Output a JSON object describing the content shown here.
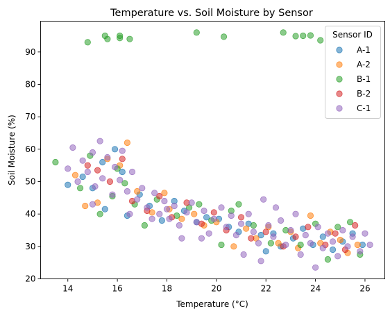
{
  "chart_data": {
    "type": "scatter",
    "title": "Temperature vs. Soil Moisture by Sensor",
    "xlabel": "Temperature (°C)",
    "ylabel": "Soil Moisture (%)",
    "xlim": [
      12.9,
      26.8
    ],
    "ylim": [
      20,
      99.5
    ],
    "xticks": [
      14,
      16,
      18,
      20,
      22,
      24,
      26
    ],
    "yticks": [
      20,
      30,
      40,
      50,
      60,
      70,
      80,
      90
    ],
    "grid": false,
    "legend_title": "Sensor ID",
    "legend_position": "top-right",
    "series": [
      {
        "name": "A-1",
        "color": "#1f77b4",
        "points": [
          [
            14.0,
            49.0
          ],
          [
            14.6,
            51.5
          ],
          [
            15.0,
            48.0
          ],
          [
            15.4,
            56.0
          ],
          [
            15.5,
            41.5
          ],
          [
            15.9,
            60.0
          ],
          [
            16.2,
            53.0
          ],
          [
            16.4,
            39.5
          ],
          [
            16.9,
            46.0
          ],
          [
            17.3,
            42.5
          ],
          [
            17.8,
            38.0
          ],
          [
            18.3,
            44.0
          ],
          [
            18.7,
            41.0
          ],
          [
            19.2,
            37.5
          ],
          [
            19.6,
            39.0
          ],
          [
            20.1,
            38.5
          ],
          [
            20.5,
            36.0
          ],
          [
            20.9,
            34.5
          ],
          [
            21.3,
            37.0
          ],
          [
            21.8,
            33.5
          ],
          [
            22.0,
            28.5
          ],
          [
            22.3,
            34.0
          ],
          [
            22.6,
            30.0
          ],
          [
            23.1,
            32.5
          ],
          [
            23.5,
            35.5
          ],
          [
            23.9,
            30.5
          ],
          [
            24.3,
            33.0
          ],
          [
            24.7,
            29.0
          ],
          [
            25.1,
            31.5
          ],
          [
            25.5,
            34.0
          ],
          [
            25.9,
            30.5
          ]
        ]
      },
      {
        "name": "A-2",
        "color": "#ff7f0e",
        "points": [
          [
            14.3,
            52.0
          ],
          [
            14.7,
            42.5
          ],
          [
            15.2,
            43.5
          ],
          [
            15.6,
            57.0
          ],
          [
            16.1,
            55.0
          ],
          [
            16.4,
            62.0
          ],
          [
            16.8,
            47.0
          ],
          [
            17.4,
            40.5
          ],
          [
            17.9,
            46.5
          ],
          [
            18.1,
            41.5
          ],
          [
            18.6,
            38.5
          ],
          [
            19.1,
            40.0
          ],
          [
            19.5,
            36.5
          ],
          [
            20.0,
            37.5
          ],
          [
            20.7,
            30.0
          ],
          [
            21.2,
            35.5
          ],
          [
            21.6,
            32.5
          ],
          [
            22.1,
            36.0
          ],
          [
            22.5,
            31.0
          ],
          [
            23.0,
            34.5
          ],
          [
            23.3,
            29.5
          ],
          [
            23.8,
            39.5
          ],
          [
            24.2,
            31.0
          ],
          [
            24.6,
            34.5
          ],
          [
            25.0,
            32.0
          ],
          [
            25.3,
            28.0
          ],
          [
            25.7,
            30.5
          ]
        ]
      },
      {
        "name": "B-1",
        "color": "#2ca02c",
        "points": [
          [
            14.8,
            93.0
          ],
          [
            15.5,
            95.0
          ],
          [
            15.6,
            94.0
          ],
          [
            16.1,
            95.0
          ],
          [
            16.1,
            94.3
          ],
          [
            16.5,
            94.0
          ],
          [
            19.2,
            96.0
          ],
          [
            20.3,
            94.7
          ],
          [
            22.7,
            96.0
          ],
          [
            23.2,
            94.9
          ],
          [
            23.5,
            95.0
          ],
          [
            23.8,
            95.1
          ],
          [
            24.2,
            93.6
          ],
          [
            13.5,
            56.0
          ],
          [
            14.5,
            48.0
          ],
          [
            14.9,
            58.0
          ],
          [
            15.3,
            40.0
          ],
          [
            15.8,
            45.5
          ],
          [
            16.0,
            54.0
          ],
          [
            16.3,
            49.5
          ],
          [
            16.7,
            43.0
          ],
          [
            17.1,
            36.5
          ],
          [
            17.6,
            44.5
          ],
          [
            18.4,
            39.5
          ],
          [
            18.9,
            42.0
          ],
          [
            19.3,
            43.0
          ],
          [
            19.8,
            38.0
          ],
          [
            20.2,
            30.5
          ],
          [
            20.6,
            41.0
          ],
          [
            20.9,
            43.0
          ],
          [
            21.5,
            36.5
          ],
          [
            22.2,
            31.0
          ],
          [
            22.8,
            35.0
          ],
          [
            23.4,
            30.5
          ],
          [
            24.0,
            37.0
          ],
          [
            24.5,
            26.0
          ],
          [
            24.9,
            36.0
          ],
          [
            25.4,
            37.5
          ],
          [
            25.8,
            27.5
          ]
        ]
      },
      {
        "name": "B-2",
        "color": "#d62728",
        "points": [
          [
            14.8,
            55.0
          ],
          [
            15.2,
            53.5
          ],
          [
            15.7,
            50.0
          ],
          [
            16.2,
            57.0
          ],
          [
            16.6,
            44.0
          ],
          [
            17.2,
            41.0
          ],
          [
            17.7,
            45.5
          ],
          [
            18.2,
            39.0
          ],
          [
            18.8,
            43.5
          ],
          [
            19.4,
            37.0
          ],
          [
            19.9,
            40.5
          ],
          [
            20.4,
            35.0
          ],
          [
            21.0,
            39.0
          ],
          [
            21.4,
            32.5
          ],
          [
            22.0,
            34.5
          ],
          [
            22.7,
            30.0
          ],
          [
            23.2,
            33.0
          ],
          [
            23.7,
            36.0
          ],
          [
            24.4,
            30.5
          ],
          [
            24.8,
            34.0
          ],
          [
            25.2,
            29.0
          ],
          [
            25.6,
            36.5
          ]
        ]
      },
      {
        "name": "C-1",
        "color": "#9467bd",
        "points": [
          [
            14.0,
            54.0
          ],
          [
            14.2,
            60.5
          ],
          [
            14.4,
            50.0
          ],
          [
            14.6,
            56.5
          ],
          [
            14.8,
            53.0
          ],
          [
            15.0,
            59.0
          ],
          [
            15.1,
            48.5
          ],
          [
            15.3,
            62.5
          ],
          [
            15.4,
            51.0
          ],
          [
            15.6,
            57.5
          ],
          [
            15.8,
            46.0
          ],
          [
            15.9,
            54.5
          ],
          [
            16.1,
            50.5
          ],
          [
            16.2,
            59.5
          ],
          [
            16.4,
            47.0
          ],
          [
            16.6,
            53.0
          ],
          [
            16.8,
            44.5
          ],
          [
            17.0,
            48.0
          ],
          [
            17.2,
            42.0
          ],
          [
            17.5,
            46.5
          ],
          [
            17.7,
            40.0
          ],
          [
            17.9,
            44.0
          ],
          [
            18.1,
            38.5
          ],
          [
            18.3,
            42.5
          ],
          [
            18.5,
            36.5
          ],
          [
            18.8,
            40.5
          ],
          [
            19.0,
            43.5
          ],
          [
            19.2,
            37.5
          ],
          [
            19.5,
            41.0
          ],
          [
            19.7,
            34.0
          ],
          [
            19.9,
            38.5
          ],
          [
            20.2,
            42.0
          ],
          [
            20.4,
            36.0
          ],
          [
            20.6,
            39.5
          ],
          [
            20.8,
            33.5
          ],
          [
            21.0,
            37.0
          ],
          [
            21.3,
            40.0
          ],
          [
            21.5,
            34.5
          ],
          [
            21.7,
            31.0
          ],
          [
            21.9,
            44.5
          ],
          [
            22.1,
            36.5
          ],
          [
            22.3,
            33.0
          ],
          [
            22.6,
            38.0
          ],
          [
            22.8,
            30.5
          ],
          [
            23.0,
            35.0
          ],
          [
            23.2,
            40.0
          ],
          [
            23.4,
            27.5
          ],
          [
            23.6,
            33.5
          ],
          [
            23.8,
            31.0
          ],
          [
            24.0,
            23.5
          ],
          [
            24.1,
            36.0
          ],
          [
            24.3,
            29.5
          ],
          [
            24.5,
            34.0
          ],
          [
            24.7,
            31.5
          ],
          [
            24.9,
            27.0
          ],
          [
            25.1,
            35.0
          ],
          [
            25.3,
            30.0
          ],
          [
            25.5,
            33.0
          ],
          [
            25.8,
            28.5
          ],
          [
            26.0,
            34.0
          ],
          [
            26.2,
            30.5
          ],
          [
            17.4,
            38.5
          ],
          [
            18.0,
            41.5
          ],
          [
            19.4,
            32.5
          ],
          [
            21.1,
            27.5
          ],
          [
            21.8,
            25.5
          ],
          [
            22.4,
            42.0
          ],
          [
            18.6,
            32.5
          ],
          [
            16.5,
            40.0
          ],
          [
            15.0,
            43.0
          ]
        ]
      }
    ]
  }
}
